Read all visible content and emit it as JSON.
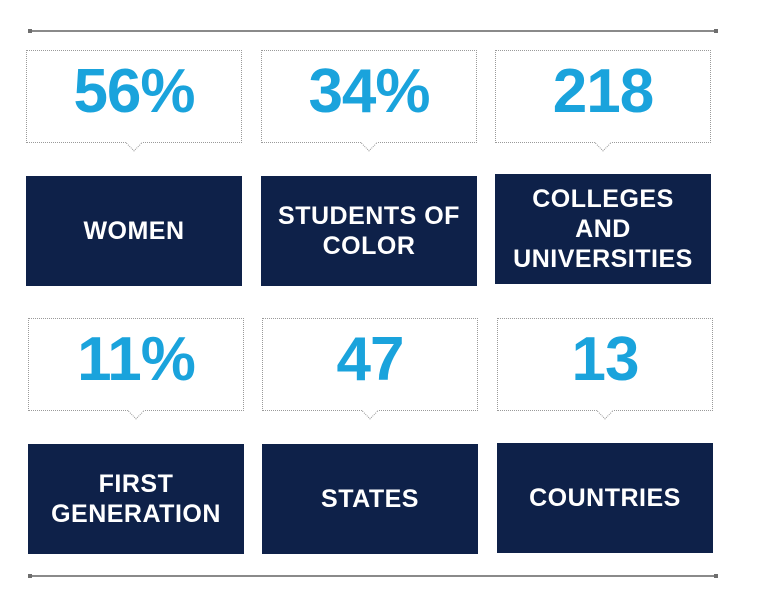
{
  "stats": [
    {
      "value": "56%",
      "label": "WOMEN"
    },
    {
      "value": "34%",
      "label": "STUDENTS OF\nCOLOR"
    },
    {
      "value": "218",
      "label": "COLLEGES AND\nUNIVERSITIES"
    },
    {
      "value": "11%",
      "label": "FIRST\nGENERATION"
    },
    {
      "value": "47",
      "label": "STATES"
    },
    {
      "value": "13",
      "label": "COUNTRIES"
    }
  ],
  "colors": {
    "accent": "#1aa3dc",
    "navy": "#0e2149",
    "rule": "#8a8a8a"
  }
}
